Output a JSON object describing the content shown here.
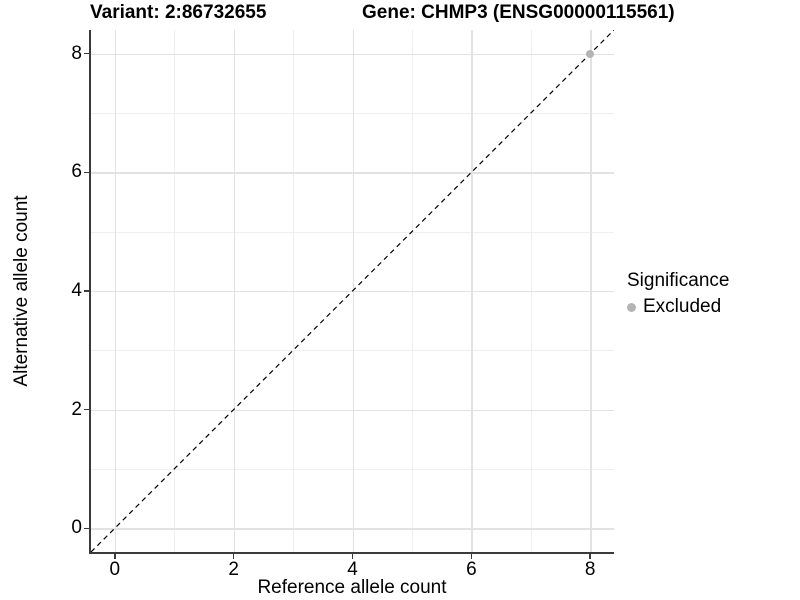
{
  "colors": {
    "background": "#ffffff",
    "axis_line": "#3a3a3a",
    "grid_major": "#e2e2e2",
    "grid_minor": "#efefef",
    "text": "#000000",
    "excluded_gray": "#b4b4b4",
    "identity_line": "#000000"
  },
  "chart_data": {
    "type": "scatter",
    "titles": {
      "left": "Variant: 2:86732655",
      "right": "Gene: CHMP3 (ENSG00000115561)"
    },
    "xlabel": "Reference allele count",
    "ylabel": "Alternative allele count",
    "x_domain": [
      -0.4,
      8.4
    ],
    "y_domain": [
      -0.4,
      8.4
    ],
    "major_breaks": [
      0,
      2,
      4,
      6,
      8
    ],
    "minor_breaks": [
      1,
      3,
      5,
      7
    ],
    "grid": "major and minor gridlines, white panel, axis lines left and bottom only",
    "identity_line": {
      "description": "dashed y = x reference line",
      "style": "dashed",
      "color": "#000000",
      "from": [
        -0.4,
        -0.4
      ],
      "to": [
        8.4,
        8.4
      ]
    },
    "series": [
      {
        "name": "Excluded",
        "color": "#b4b4b4",
        "points": [
          [
            8,
            8
          ]
        ]
      }
    ],
    "legend": {
      "position": "right",
      "title": "Significance",
      "entries": [
        {
          "label": "Excluded",
          "color": "#b4b4b4"
        }
      ]
    }
  }
}
